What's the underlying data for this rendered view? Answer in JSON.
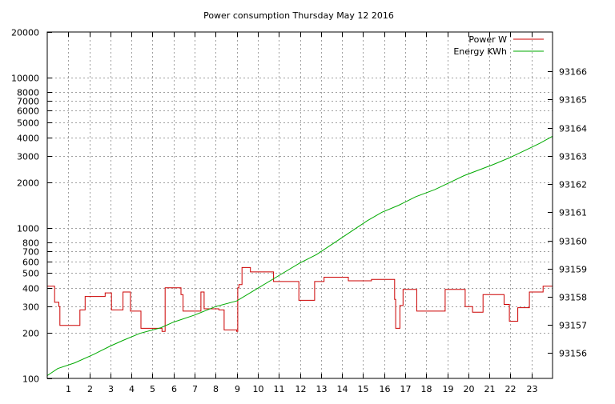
{
  "chart_data": {
    "type": "line",
    "title": "Power consumption Thursday May 12 2016",
    "xlabel": "",
    "ylabel": "",
    "y2label": "",
    "xlim": [
      0,
      24
    ],
    "ylim": [
      100,
      20000
    ],
    "yscale": "log",
    "y2lim": [
      93155.1,
      93167.4
    ],
    "x_ticks": [
      "1",
      "2",
      "3",
      "4",
      "5",
      "6",
      "7",
      "8",
      "9",
      "10",
      "11",
      "12",
      "13",
      "14",
      "15",
      "16",
      "17",
      "18",
      "19",
      "20",
      "21",
      "22",
      "23"
    ],
    "y_ticks": [
      {
        "v": 100,
        "label": "100"
      },
      {
        "v": 200,
        "label": "200"
      },
      {
        "v": 300,
        "label": "300"
      },
      {
        "v": 400,
        "label": "400"
      },
      {
        "v": 500,
        "label": "500"
      },
      {
        "v": 600,
        "label": "600"
      },
      {
        "v": 700,
        "label": "700"
      },
      {
        "v": 800,
        "label": "800"
      },
      {
        "v": 1000,
        "label": "1000"
      },
      {
        "v": 2000,
        "label": "2000"
      },
      {
        "v": 3000,
        "label": "3000"
      },
      {
        "v": 4000,
        "label": "4000"
      },
      {
        "v": 5000,
        "label": "5000"
      },
      {
        "v": 6000,
        "label": "6000"
      },
      {
        "v": 7000,
        "label": "7000"
      },
      {
        "v": 8000,
        "label": "8000"
      },
      {
        "v": 10000,
        "label": "10000"
      },
      {
        "v": 20000,
        "label": "20000"
      }
    ],
    "y2_ticks": [
      {
        "v": 93156,
        "label": "93156"
      },
      {
        "v": 93157,
        "label": "93157"
      },
      {
        "v": 93158,
        "label": "93158"
      },
      {
        "v": 93159,
        "label": "93159"
      },
      {
        "v": 93160,
        "label": "93160"
      },
      {
        "v": 93161,
        "label": "93161"
      },
      {
        "v": 93162,
        "label": "93162"
      },
      {
        "v": 93163,
        "label": "93163"
      },
      {
        "v": 93164,
        "label": "93164"
      },
      {
        "v": 93165,
        "label": "93165"
      },
      {
        "v": 93166,
        "label": "93166"
      }
    ],
    "grid": true,
    "legend_position": "top-right",
    "series": [
      {
        "name": "Power W",
        "color": "#cc0000",
        "axis": "y",
        "step": true,
        "x": [
          0,
          0.35,
          0.55,
          0.6,
          1.55,
          1.8,
          2.5,
          2.75,
          3.05,
          3.6,
          3.95,
          4.45,
          5.45,
          5.6,
          6.35,
          6.45,
          7.3,
          7.45,
          8.15,
          8.4,
          9.0,
          9.05,
          9.1,
          9.25,
          9.65,
          10.75,
          11.95,
          12.7,
          13.15,
          14.3,
          15.4,
          16.5,
          16.55,
          16.75,
          16.9,
          17.55,
          18.9,
          19.85,
          20.2,
          20.7,
          21.7,
          21.95,
          22.35,
          22.9,
          23.55,
          24
        ],
        "y": [
          410,
          320,
          300,
          225,
          285,
          350,
          350,
          370,
          285,
          375,
          280,
          215,
          205,
          400,
          360,
          280,
          375,
          290,
          285,
          210,
          205,
          400,
          420,
          545,
          510,
          440,
          330,
          440,
          470,
          445,
          455,
          335,
          215,
          305,
          390,
          280,
          390,
          300,
          275,
          360,
          310,
          240,
          295,
          375,
          410,
          315
        ]
      },
      {
        "name": "Energy KWh",
        "color": "#00aa00",
        "axis": "y2",
        "step": false,
        "x": [
          0,
          0.5,
          1.3,
          2.2,
          3.0,
          3.6,
          4.4,
          5.4,
          6.0,
          7.0,
          8.0,
          9.0,
          10.0,
          11.0,
          12.0,
          12.8,
          13.7,
          14.4,
          15.2,
          15.9,
          16.7,
          17.5,
          18.4,
          19.1,
          19.8,
          20.5,
          21.2,
          22.0,
          22.7,
          23.4,
          24.0
        ],
        "y": [
          93155.2,
          93155.45,
          93155.65,
          93155.95,
          93156.25,
          93156.45,
          93156.7,
          93156.9,
          93157.1,
          93157.35,
          93157.65,
          93157.85,
          93158.3,
          93158.75,
          93159.2,
          93159.5,
          93159.95,
          93160.3,
          93160.7,
          93161.0,
          93161.25,
          93161.55,
          93161.8,
          93162.05,
          93162.3,
          93162.5,
          93162.7,
          93162.95,
          93163.2,
          93163.45,
          93163.7
        ]
      }
    ]
  }
}
